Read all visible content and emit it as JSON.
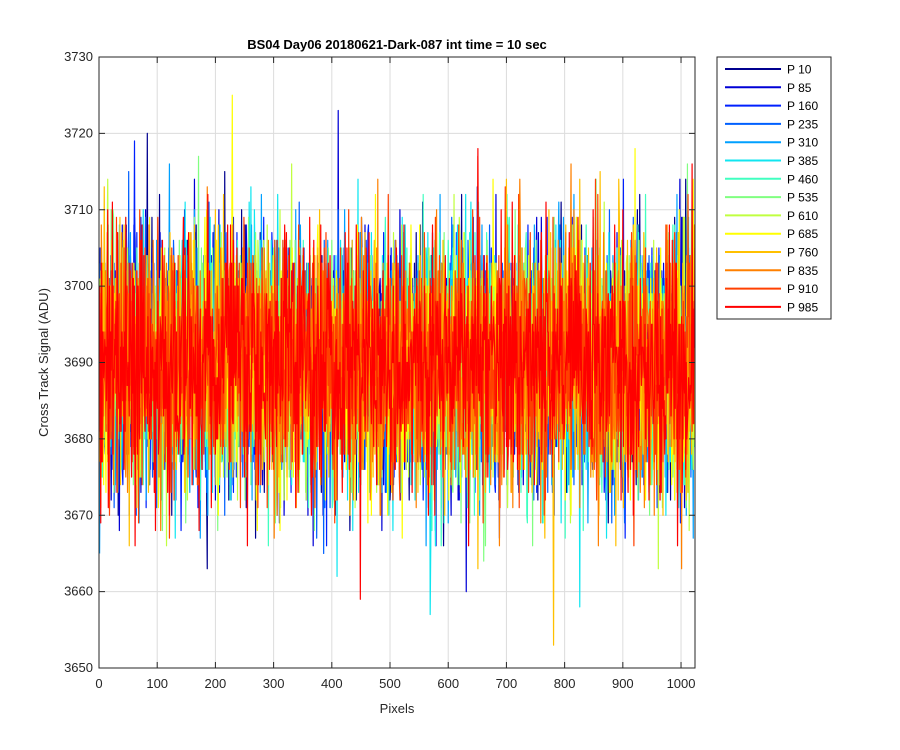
{
  "chart_data": {
    "type": "line",
    "title": "BS04 Day06 20180621-Dark-087 int time = 10 sec",
    "xlabel": "Pixels",
    "ylabel": "Cross Track Signal (ADU)",
    "xlim": [
      0,
      1024
    ],
    "ylim": [
      3650,
      3730
    ],
    "xticks": [
      0,
      100,
      200,
      300,
      400,
      500,
      600,
      700,
      800,
      900,
      1000
    ],
    "yticks": [
      3650,
      3660,
      3670,
      3680,
      3690,
      3700,
      3710,
      3720,
      3730
    ],
    "grid": true,
    "legend_position": "outside-top-right",
    "noise": {
      "mean": 3690,
      "typical_spread": 8
    },
    "series": [
      {
        "name": "P 10",
        "color": "#00008F",
        "seed": 11,
        "peaks": [
          [
            82,
            3720
          ],
          [
            215,
            3715
          ]
        ],
        "dips": [
          [
            185,
            3663
          ]
        ]
      },
      {
        "name": "P 85",
        "color": "#0000D6",
        "seed": 23,
        "peaks": [
          [
            410,
            3723
          ],
          [
            630,
            3719
          ]
        ],
        "dips": [
          [
            630,
            3660
          ]
        ]
      },
      {
        "name": "P 160",
        "color": "#0020FF",
        "seed": 37,
        "peaks": [
          [
            60,
            3719
          ],
          [
            900,
            3714
          ]
        ],
        "dips": [
          [
            140,
            3668
          ]
        ]
      },
      {
        "name": "P 235",
        "color": "#0060FF",
        "seed": 41,
        "peaks": [
          [
            50,
            3715
          ]
        ],
        "dips": [
          [
            385,
            3665
          ]
        ]
      },
      {
        "name": "P 310",
        "color": "#00A0FF",
        "seed": 53,
        "peaks": [
          [
            120,
            3716
          ]
        ],
        "dips": [
          [
            0,
            3665
          ]
        ]
      },
      {
        "name": "P 385",
        "color": "#10E6F0",
        "seed": 67,
        "peaks": [
          [
            260,
            3713
          ]
        ],
        "dips": [
          [
            568,
            3657
          ],
          [
            825,
            3658
          ],
          [
            408,
            3662
          ]
        ]
      },
      {
        "name": "P 460",
        "color": "#40FFC0",
        "seed": 71,
        "peaks": [
          [
            700,
            3712
          ]
        ],
        "dips": [
          [
            290,
            3666
          ]
        ]
      },
      {
        "name": "P 535",
        "color": "#80FF80",
        "seed": 83,
        "peaks": [
          [
            170,
            3717
          ],
          [
            1010,
            3716
          ]
        ],
        "dips": [
          [
            660,
            3664
          ]
        ]
      },
      {
        "name": "P 610",
        "color": "#C0FF40",
        "seed": 97,
        "peaks": [
          [
            330,
            3716
          ]
        ],
        "dips": [
          [
            960,
            3663
          ]
        ]
      },
      {
        "name": "P 685",
        "color": "#FFFF00",
        "seed": 101,
        "peaks": [
          [
            228,
            3725
          ],
          [
            920,
            3718
          ]
        ],
        "dips": [
          [
            520,
            3667
          ]
        ]
      },
      {
        "name": "P 760",
        "color": "#FFC000",
        "seed": 113,
        "peaks": [
          [
            860,
            3715
          ]
        ],
        "dips": [
          [
            780,
            3653
          ],
          [
            650,
            3663
          ]
        ]
      },
      {
        "name": "P 835",
        "color": "#FF8000",
        "seed": 127,
        "peaks": [
          [
            810,
            3716
          ]
        ],
        "dips": [
          [
            300,
            3667
          ],
          [
            1000,
            3663
          ]
        ]
      },
      {
        "name": "P 910",
        "color": "#FF4000",
        "seed": 131,
        "peaks": [
          [
            650,
            3717
          ]
        ],
        "dips": [
          [
            120,
            3667
          ]
        ]
      },
      {
        "name": "P 985",
        "color": "#FF0000",
        "seed": 139,
        "peaks": [
          [
            650,
            3718
          ],
          [
            1018,
            3716
          ]
        ],
        "dips": [
          [
            448,
            3659
          ]
        ]
      }
    ]
  }
}
